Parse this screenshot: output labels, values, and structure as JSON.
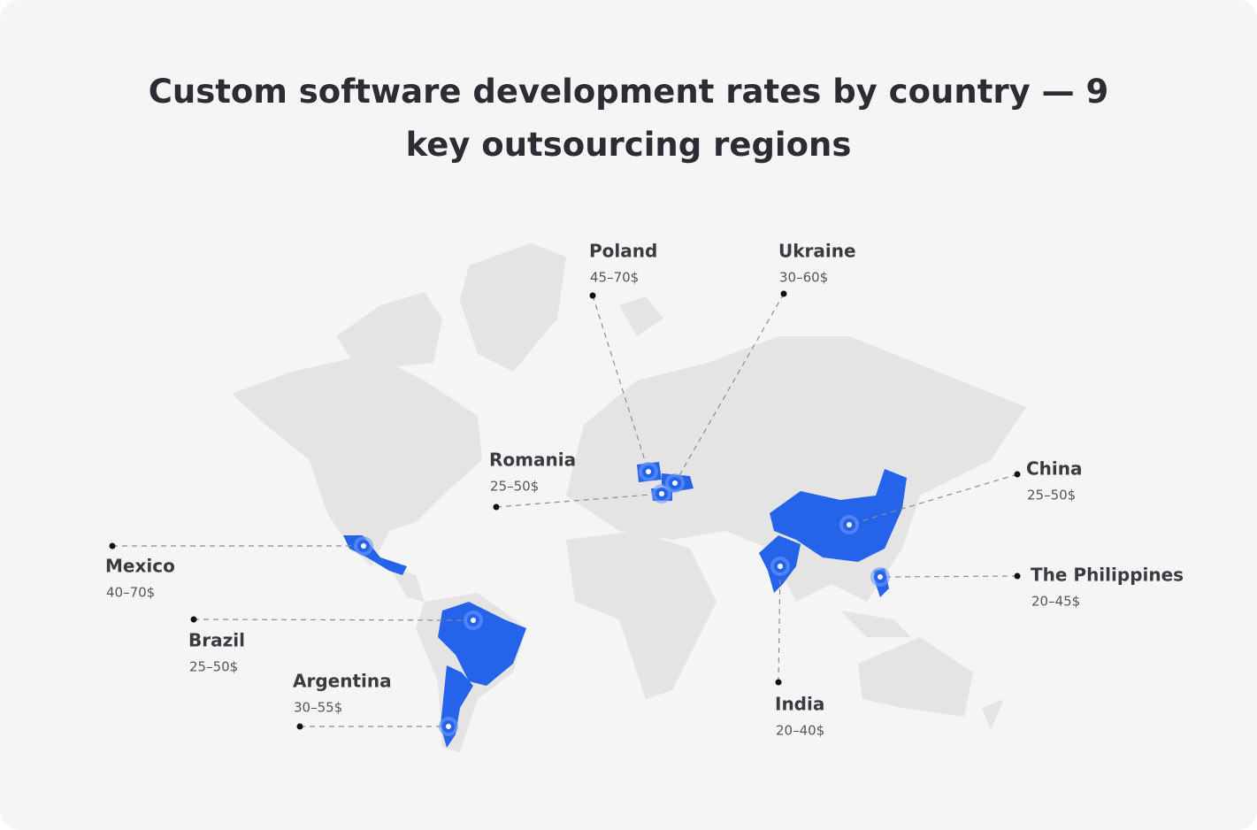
{
  "title": "Custom software development rates by country — 9 key outsourcing regions",
  "regions": [
    {
      "name": "Poland",
      "rate": "45–70$"
    },
    {
      "name": "Ukraine",
      "rate": "30–60$"
    },
    {
      "name": "Romania",
      "rate": "25–50$"
    },
    {
      "name": "China",
      "rate": "25–50$"
    },
    {
      "name": "The Philippines",
      "rate": "20–45$"
    },
    {
      "name": "India",
      "rate": "20–40$"
    },
    {
      "name": "Mexico",
      "rate": "40–70$"
    },
    {
      "name": "Brazil",
      "rate": "25–50$"
    },
    {
      "name": "Argentina",
      "rate": "30–55$"
    }
  ]
}
